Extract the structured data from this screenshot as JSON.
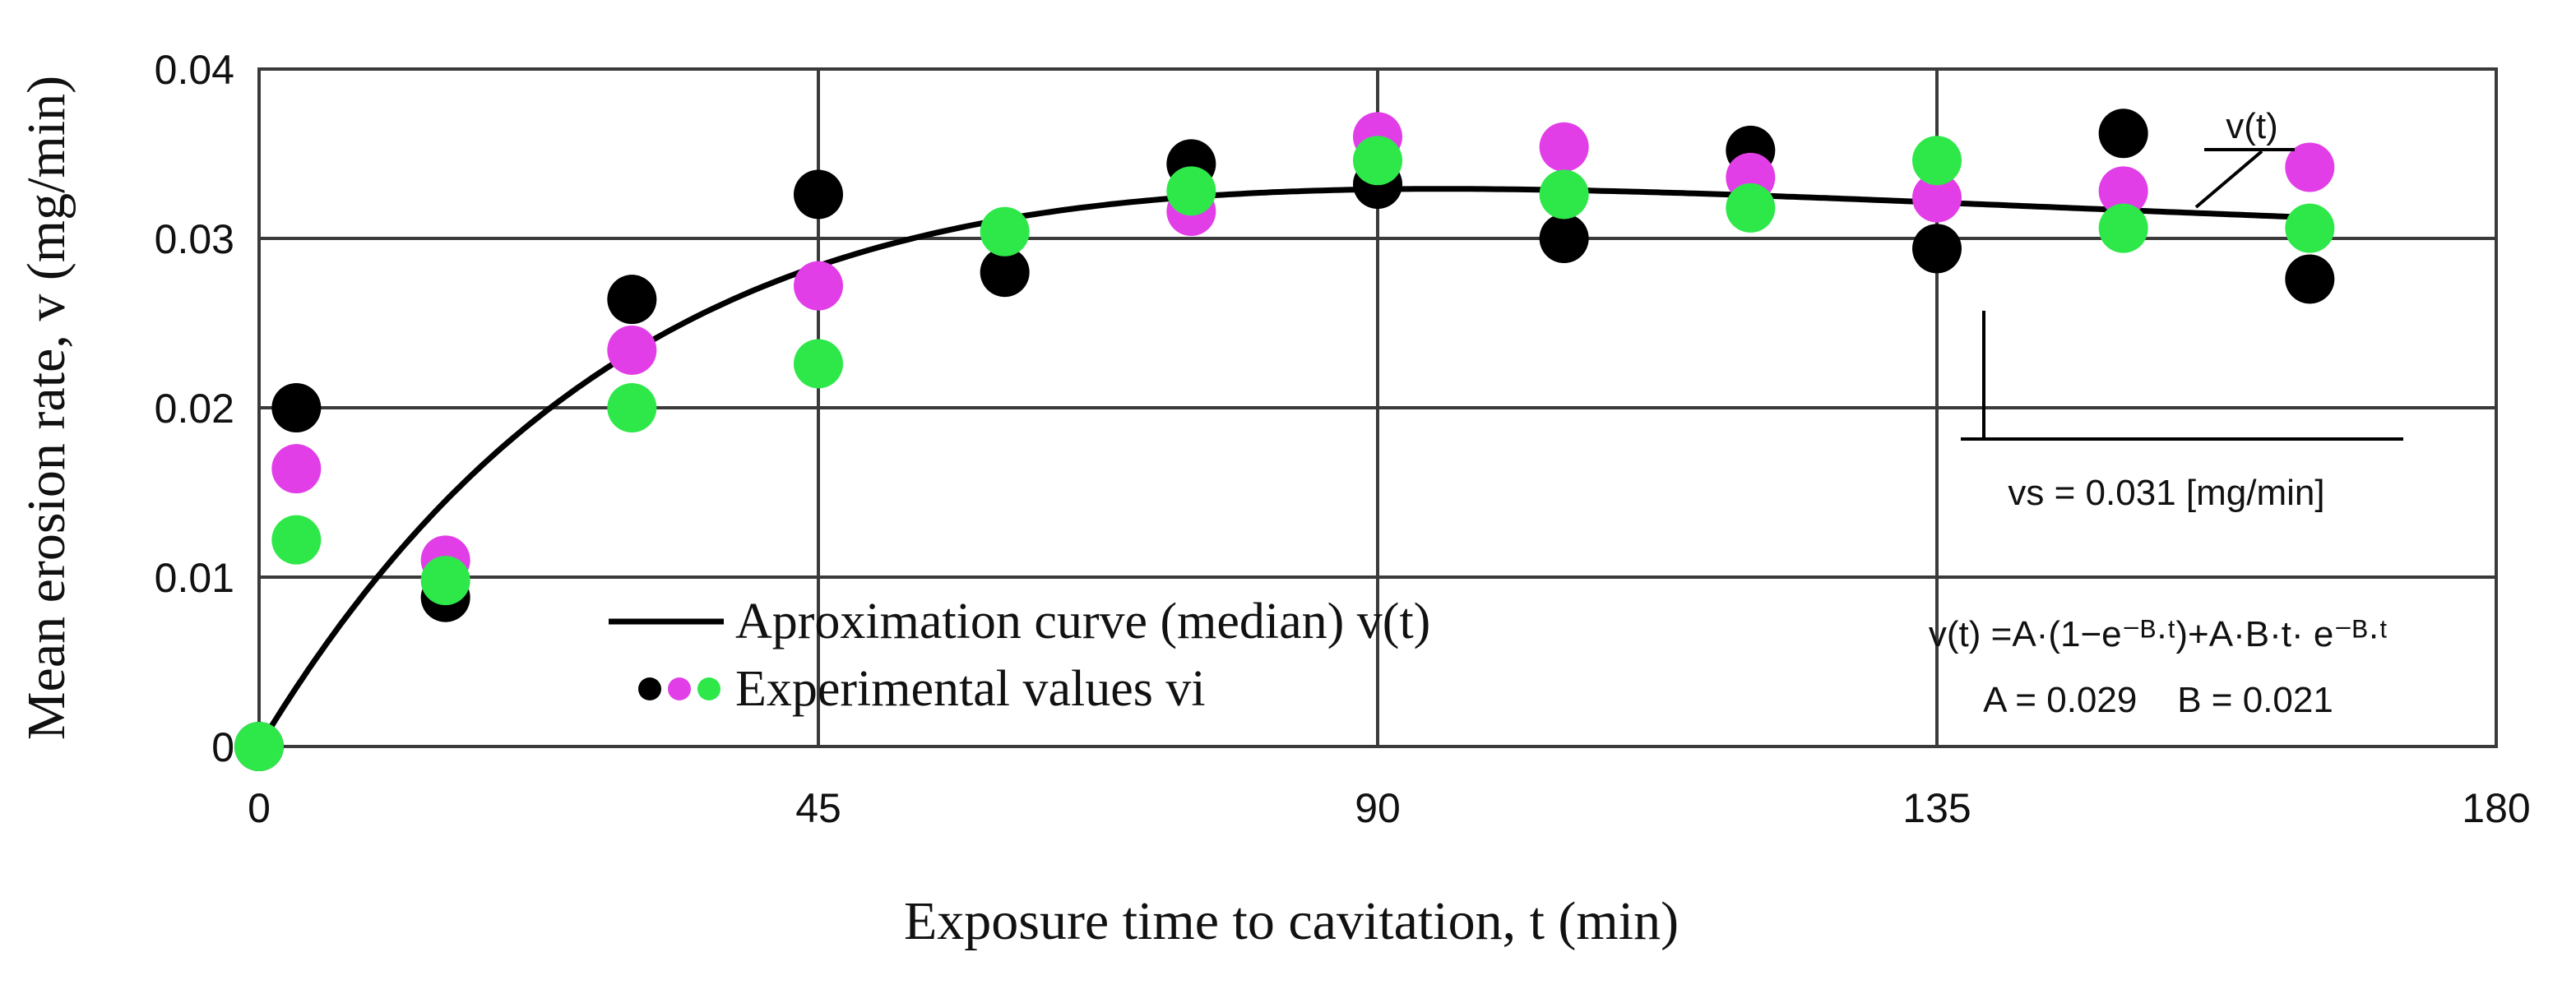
{
  "chart_data": {
    "type": "scatter",
    "xlabel": "Exposure time  to cavitation, t (min)",
    "ylabel": "Mean erosion rate, v (mg/min)",
    "xlim": [
      0,
      180
    ],
    "ylim": [
      0,
      0.04
    ],
    "x_ticks": [
      "0",
      "45",
      "90",
      "135",
      "180"
    ],
    "y_ticks": [
      "0",
      "0.01",
      "0.02",
      "0.03",
      "0.04"
    ],
    "grid": true,
    "fit": {
      "name": "Aproximation curve (median) v(t)",
      "A": 0.029,
      "B": 0.021,
      "equation": "v(t) =A·(1−e⁻ᴮ·ᵗ)+A·B·t· e⁻ᴮ·ᵗ",
      "params_label": "A = 0.029    B = 0.021",
      "curve_label": "v(t)",
      "t_range": [
        0,
        165
      ],
      "color": "#000000"
    },
    "steady_state_label": "vs = 0.031 [mg/min]",
    "legend": {
      "curve_label": "Aproximation curve (median) v(t)",
      "points_label": "Experimental values vi"
    },
    "series": [
      {
        "name": "black",
        "color": "#000000",
        "points": [
          [
            0,
            0
          ],
          [
            3,
            0.02
          ],
          [
            15,
            0.0088
          ],
          [
            30,
            0.0264
          ],
          [
            45,
            0.0326
          ],
          [
            60,
            0.028
          ],
          [
            75,
            0.0344
          ],
          [
            90,
            0.0332
          ],
          [
            105,
            0.03
          ],
          [
            120,
            0.0352
          ],
          [
            135,
            0.0294
          ],
          [
            150,
            0.0362
          ],
          [
            165,
            0.0276
          ]
        ]
      },
      {
        "name": "magenta",
        "color": "#e23ee8",
        "points": [
          [
            3,
            0.0164
          ],
          [
            15,
            0.011
          ],
          [
            30,
            0.0234
          ],
          [
            45,
            0.0272
          ],
          [
            75,
            0.0316
          ],
          [
            90,
            0.036
          ],
          [
            105,
            0.0354
          ],
          [
            120,
            0.0336
          ],
          [
            135,
            0.0324
          ],
          [
            150,
            0.0328
          ],
          [
            165,
            0.0342
          ]
        ]
      },
      {
        "name": "green",
        "color": "#2ee84a",
        "points": [
          [
            0,
            0
          ],
          [
            3,
            0.0122
          ],
          [
            15,
            0.0098
          ],
          [
            30,
            0.02
          ],
          [
            45,
            0.0226
          ],
          [
            60,
            0.0304
          ],
          [
            75,
            0.0328
          ],
          [
            90,
            0.0346
          ],
          [
            105,
            0.0326
          ],
          [
            120,
            0.0318
          ],
          [
            135,
            0.0346
          ],
          [
            150,
            0.0306
          ],
          [
            165,
            0.0306
          ]
        ]
      }
    ]
  }
}
